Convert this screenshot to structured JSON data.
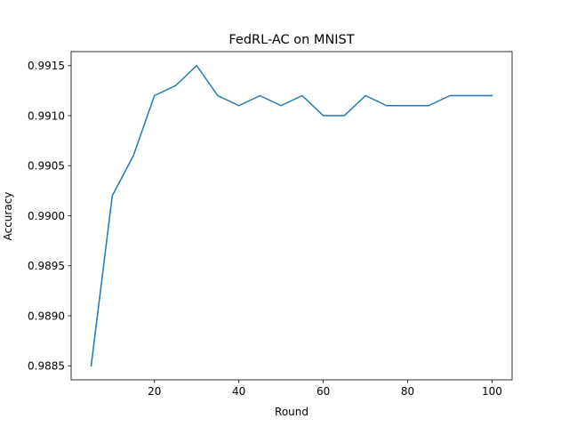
{
  "chart_data": {
    "type": "line",
    "title": "FedRL-AC on MNIST",
    "xlabel": "Round",
    "ylabel": "Accuracy",
    "xlim": [
      0.25,
      104.75
    ],
    "ylim": [
      0.98836,
      0.99164
    ],
    "xticks": [
      20,
      40,
      60,
      80,
      100
    ],
    "yticks": [
      0.9885,
      0.989,
      0.9895,
      0.99,
      0.9905,
      0.991,
      0.9915
    ],
    "ytick_labels": [
      "0.9885",
      "0.9890",
      "0.9895",
      "0.9900",
      "0.9905",
      "0.9910",
      "0.9915"
    ],
    "grid": false,
    "series": [
      {
        "color": "#1f77b4",
        "x": [
          5,
          10,
          15,
          20,
          25,
          30,
          35,
          40,
          45,
          50,
          55,
          60,
          65,
          70,
          75,
          80,
          85,
          90,
          95,
          100
        ],
        "y": [
          0.9885,
          0.9902,
          0.9906,
          0.9912,
          0.9913,
          0.9915,
          0.9912,
          0.9911,
          0.9912,
          0.9911,
          0.9912,
          0.991,
          0.991,
          0.9912,
          0.9911,
          0.9911,
          0.9911,
          0.9912,
          0.9912,
          0.9912
        ]
      }
    ]
  }
}
